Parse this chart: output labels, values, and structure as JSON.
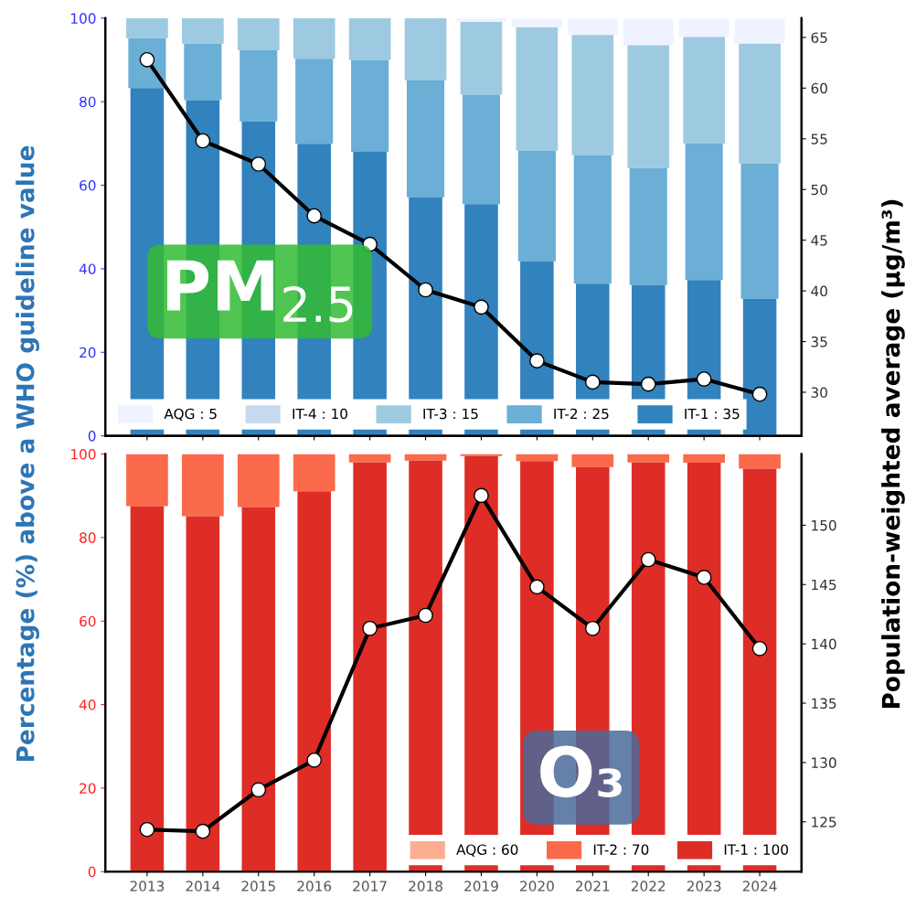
{
  "chart_data": [
    {
      "type": "bar",
      "stacked": true,
      "categories": [
        "2013",
        "2014",
        "2015",
        "2016",
        "2017",
        "2018",
        "2019",
        "2020",
        "2021",
        "2022",
        "2023",
        "2024"
      ],
      "ylabel": "Percentage (%) above a WHO guideline value",
      "y2label": "Population-weighted average (μg/m³)",
      "annotations": [
        "PM$_{2.5}$"
      ],
      "ylim": [
        0,
        100
      ],
      "yticks": [
        0,
        20,
        40,
        60,
        80,
        100
      ],
      "y2lim": [
        25.7,
        66.9
      ],
      "y2ticks": [
        30,
        35,
        40,
        45,
        50,
        55,
        60,
        65
      ],
      "tick_labels": "y",
      "legend": "bottom left",
      "grid": false,
      "series": [
        {
          "name": "IT-1 : 35",
          "color": "#3182bd",
          "values": [
            83.3,
            80.4,
            75.3,
            69.9,
            68.0,
            57.1,
            55.5,
            41.8,
            36.4,
            36.1,
            37.3,
            32.8
          ]
        },
        {
          "name": "IT-2 : 25",
          "color": "#6baed6",
          "values": [
            11.9,
            13.5,
            17.0,
            20.4,
            22.0,
            28.0,
            26.2,
            26.5,
            30.8,
            28.0,
            32.7,
            32.4
          ]
        },
        {
          "name": "IT-3 : 15",
          "color": "#9ecae1",
          "values": [
            4.8,
            6.1,
            7.7,
            9.7,
            10.0,
            14.9,
            17.4,
            29.5,
            28.8,
            29.4,
            25.5,
            28.7
          ]
        },
        {
          "name": "IT-4 : 10",
          "color": "#c6dbef",
          "values": [
            0,
            0,
            0,
            0,
            0,
            0,
            0,
            0,
            0,
            0,
            0,
            0
          ]
        },
        {
          "name": "AQG : 5",
          "color": "#eff3ff",
          "values": [
            0,
            0,
            0,
            0,
            0,
            0,
            0.9,
            2.2,
            4.0,
            6.5,
            4.5,
            6.1
          ]
        },
        {
          "type": "line",
          "axis": "y2",
          "color": "#000000",
          "marker": "circle",
          "line_style": "solid",
          "values": [
            62.8,
            54.8,
            52.5,
            47.4,
            44.6,
            40.1,
            38.4,
            33.1,
            31.0,
            30.8,
            31.3,
            29.8
          ]
        }
      ]
    },
    {
      "type": "bar",
      "stacked": true,
      "categories": [
        "2013",
        "2014",
        "2015",
        "2016",
        "2017",
        "2018",
        "2019",
        "2020",
        "2021",
        "2022",
        "2023",
        "2024"
      ],
      "annotations": [
        "O₃"
      ],
      "ylim": [
        0,
        100
      ],
      "yticks": [
        0,
        20,
        40,
        60,
        80,
        100
      ],
      "y2lim": [
        120.8,
        156.0
      ],
      "y2ticks": [
        125,
        130,
        135,
        140,
        145,
        150
      ],
      "legend": "bottom right",
      "grid": false,
      "series": [
        {
          "name": "IT-1 : 100",
          "color": "#de2d26",
          "values": [
            87.5,
            85.1,
            87.3,
            91.1,
            98.0,
            98.4,
            99.5,
            98.3,
            96.9,
            98.0,
            97.9,
            96.5
          ]
        },
        {
          "name": "IT-2 : 70",
          "color": "#fb6a4a",
          "values": [
            12.5,
            14.9,
            12.7,
            8.9,
            2.0,
            1.6,
            0.5,
            1.7,
            3.1,
            2.0,
            2.1,
            3.5
          ]
        },
        {
          "name": "AQG : 60",
          "color": "#fcae91",
          "values": [
            0,
            0,
            0,
            0,
            0,
            0,
            0,
            0,
            0,
            0,
            0,
            0
          ]
        },
        {
          "type": "line",
          "axis": "y2",
          "color": "#000000",
          "marker": "circle",
          "line_style": "solid",
          "values": [
            124.35,
            124.2,
            127.7,
            130.2,
            141.3,
            142.4,
            152.5,
            144.8,
            141.3,
            147.1,
            145.6,
            139.6
          ]
        }
      ]
    }
  ]
}
